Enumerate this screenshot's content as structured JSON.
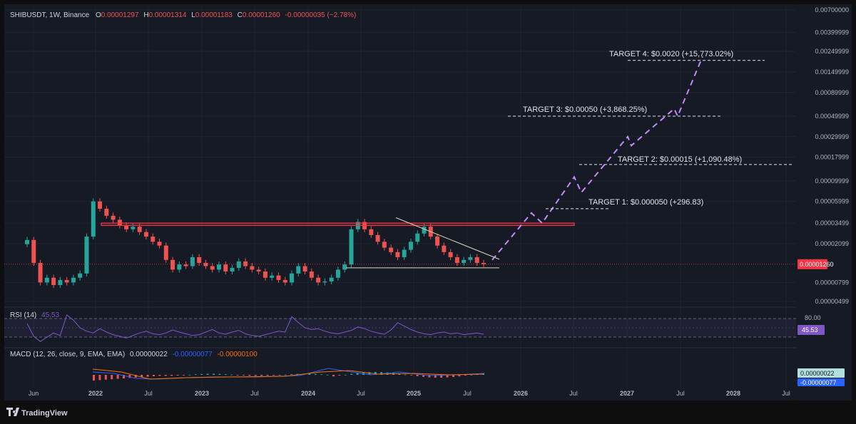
{
  "header": {
    "symbol": "SHIBUSDT, 1W, Binance",
    "o_label": "O",
    "o_value": "0.00001297",
    "h_label": "H",
    "h_value": "0.00001314",
    "l_label": "L",
    "l_value": "0.00001183",
    "c_label": "C",
    "c_value": "0.00001260",
    "change": "-0.00000035 (−2.78%)"
  },
  "price_axis": {
    "ticks": [
      "0.00700000",
      "0.00399999",
      "0.00249999",
      "0.00149999",
      "0.00089999",
      "0.00049999",
      "0.00029999",
      "0.00017999",
      "0.00009999",
      "0.00005999",
      "0.00003499",
      "0.00002099",
      "0.00000799",
      "0.00000499"
    ],
    "current_price_label": "0.00001260"
  },
  "time_axis": {
    "labels": [
      "Jun",
      "2022",
      "Jul",
      "2023",
      "Jul",
      "2024",
      "Jul",
      "2025",
      "Jul",
      "2026",
      "Jul",
      "2027",
      "Jul",
      "2028",
      "Jul"
    ]
  },
  "rsi": {
    "label": "RSI (14)",
    "value": "45.53",
    "axis_label": "80.00",
    "badge": "45.53",
    "series": [
      70,
      40,
      28,
      38,
      48,
      42,
      90,
      78,
      60,
      52,
      48,
      58,
      50,
      44,
      40,
      36,
      42,
      48,
      52,
      46,
      44,
      48,
      55,
      50,
      46,
      42,
      44,
      50,
      56,
      48,
      45,
      50,
      54,
      46,
      42,
      40,
      44,
      48,
      52,
      50,
      86,
      72,
      60,
      56,
      58,
      52,
      48,
      46,
      50,
      54,
      62,
      58,
      52,
      48,
      45,
      55,
      72,
      64,
      56,
      50,
      46,
      44,
      48,
      50,
      46,
      48,
      44,
      46,
      48,
      45
    ]
  },
  "macd": {
    "label": "MACD (12, 26, close, 9, EMA, EMA)",
    "v1": "0.00000022",
    "v2": "-0.00000077",
    "v3": "-0.00000100",
    "badge_top": "0.00000022",
    "badge_bottom": "-0.00000077"
  },
  "targets": [
    {
      "label": "TARGET 4: $0.0020 (+15,773.02%)"
    },
    {
      "label": "TARGET 3: $0.00050 (+3,868.25%)"
    },
    {
      "label": "TARGET 2: $0.00015 (+1,090.48%)"
    },
    {
      "label": "TARGET 1: $0.000050 (+296.83)"
    }
  ],
  "branding": {
    "logo": "TradingView",
    "logo_icon": "tradingview-logo-icon"
  },
  "colors": {
    "up": "#26a69a",
    "down": "#ef5350",
    "resistance": "#f23645",
    "projection": "#c58af9",
    "rsi": "#7e57c2",
    "macd_line": "#2962ff",
    "signal_line": "#ff6d00",
    "price_badge": "#f23645"
  },
  "chart_data": {
    "type": "candlestick",
    "interval": "1W",
    "y_scale": "log",
    "close_series": [
      2.3e-05,
      1.3e-05,
      8e-06,
      9e-06,
      7.5e-06,
      8.5e-06,
      8e-06,
      9e-06,
      1e-05,
      2.5e-05,
      6e-05,
      5e-05,
      4.2e-05,
      3.8e-05,
      3.3e-05,
      3e-05,
      3.2e-05,
      2.8e-05,
      2.5e-05,
      2.2e-05,
      2e-05,
      1.4e-05,
      1.1e-05,
      1.25e-05,
      1.2e-05,
      1.5e-05,
      1.3e-05,
      1.2e-05,
      1.1e-05,
      1.25e-05,
      1.05e-05,
      1.15e-05,
      1.35e-05,
      1.2e-05,
      1.1e-05,
      1.05e-05,
      9e-06,
      9.5e-06,
      8.5e-06,
      8e-06,
      1e-05,
      1.2e-05,
      1.05e-05,
      9e-06,
      8e-06,
      8.2e-06,
      9e-06,
      1.1e-05,
      1.25e-05,
      3e-05,
      3.6e-05,
      3e-05,
      2.6e-05,
      2.2e-05,
      1.9e-05,
      1.7e-05,
      1.5e-05,
      1.8e-05,
      2.2e-05,
      2.7e-05,
      3.2e-05,
      2.5e-05,
      2e-05,
      1.7e-05,
      1.5e-05,
      1.3e-05,
      1.4e-05,
      1.5e-05,
      1.3e-05,
      1.26e-05
    ],
    "resistance_zone": [
      3.3e-05,
      3.5e-05
    ],
    "triangle_support": 1.15e-05,
    "projection_targets": [
      5e-05,
      0.00015,
      0.0005,
      0.002
    ],
    "current_price": 1.26e-05
  }
}
